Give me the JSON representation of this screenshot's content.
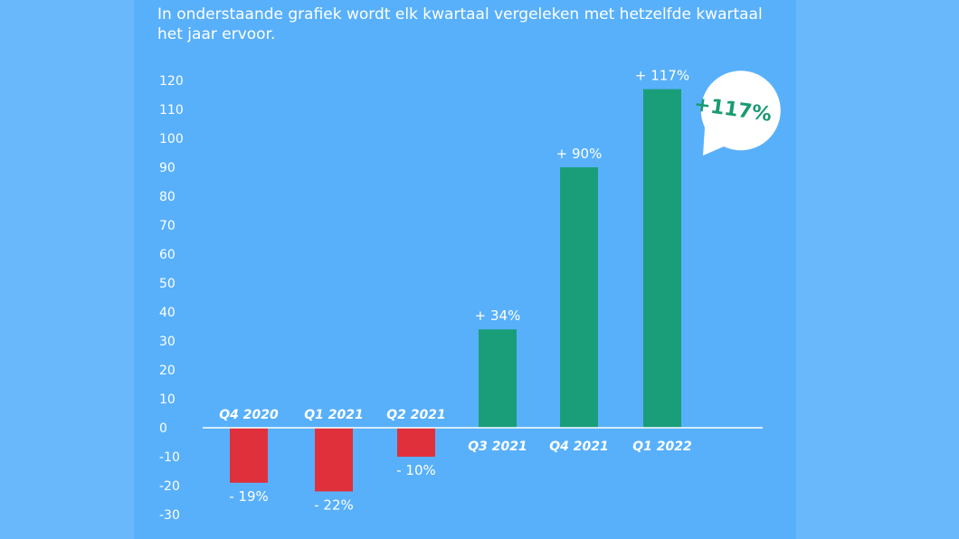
{
  "intro_text": "In onderstaande grafiek wordt elk kwartaal vergeleken met hetzelfde kwartaal het jaar ervoor.",
  "callout": {
    "text": "+117%"
  },
  "colors": {
    "negative": "#e0303b",
    "positive": "#1a9e7a",
    "axis": "#ffffff"
  },
  "chart_data": {
    "type": "bar",
    "title": "",
    "xlabel": "",
    "ylabel": "",
    "categories": [
      "Q4 2020",
      "Q1 2021",
      "Q2 2021",
      "Q3 2021",
      "Q4 2021",
      "Q1 2022"
    ],
    "values": [
      -19,
      -22,
      -10,
      34,
      90,
      117
    ],
    "data_labels": [
      "- 19%",
      "- 22%",
      "- 10%",
      "+ 34%",
      "+ 90%",
      "+ 117%"
    ],
    "ylim": [
      -30,
      120
    ],
    "yticks": [
      120,
      110,
      100,
      90,
      80,
      70,
      60,
      50,
      40,
      30,
      20,
      10,
      0,
      -10,
      -20,
      -30
    ],
    "grid": false,
    "legend": "none"
  }
}
